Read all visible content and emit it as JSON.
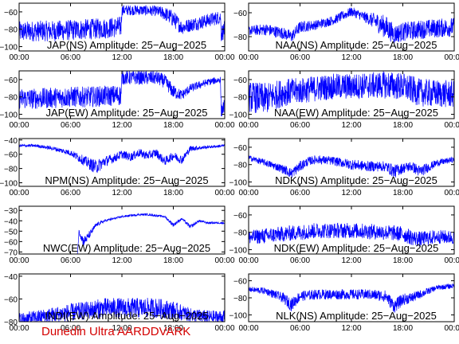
{
  "footer": "Dunedin Ultra AARDDVARK",
  "colors": {
    "trace": "#0000ff",
    "axis": "#000000",
    "footer": "#d40000"
  },
  "x_ticks": [
    "00:00",
    "06:00",
    "12:00",
    "18:00",
    "00:00"
  ],
  "chart_data": [
    {
      "type": "line",
      "title": "JAP(NS) Amplitude: 25-Aug-2025",
      "ylim": [
        -105,
        -50
      ],
      "yticks": [
        -100,
        -80,
        -60
      ],
      "xticks": [
        "00:00",
        "06:00",
        "12:00",
        "18:00",
        "00:00"
      ],
      "x": [
        0,
        2,
        4,
        6,
        8,
        10,
        11.9,
        12,
        14,
        16,
        17,
        18,
        19,
        20,
        22,
        23.5,
        23.6,
        24
      ],
      "y": [
        -83,
        -82,
        -82,
        -81,
        -80,
        -79,
        -77,
        -58,
        -58,
        -59,
        -62,
        -68,
        -78,
        -75,
        -70,
        -66,
        -85,
        -80
      ],
      "noise": [
        12,
        12,
        12,
        12,
        12,
        12,
        12,
        6,
        6,
        6,
        8,
        10,
        8,
        8,
        8,
        8,
        10,
        10
      ]
    },
    {
      "type": "line",
      "title": "NAA(NS) Amplitude: 25-Aug-2025",
      "ylim": [
        -92,
        -52
      ],
      "yticks": [
        -80,
        -60
      ],
      "xticks": [
        "00:00",
        "06:00",
        "12:00",
        "18:00",
        "00:00"
      ],
      "x": [
        0,
        2,
        4,
        5,
        6,
        8,
        10,
        12,
        13,
        14,
        15,
        16,
        17,
        18,
        20,
        22,
        24
      ],
      "y": [
        -75,
        -74,
        -77,
        -80,
        -72,
        -70,
        -66,
        -59,
        -62,
        -65,
        -68,
        -72,
        -78,
        -76,
        -74,
        -73,
        -72
      ],
      "noise": [
        4,
        5,
        5,
        5,
        5,
        4,
        4,
        4,
        4,
        5,
        8,
        10,
        8,
        8,
        8,
        8,
        8
      ]
    },
    {
      "type": "line",
      "title": "JAP(EW) Amplitude: 25-Aug-2025",
      "ylim": [
        -105,
        -50
      ],
      "yticks": [
        -100,
        -80,
        -60
      ],
      "xticks": [
        "00:00",
        "06:00",
        "12:00",
        "18:00",
        "00:00"
      ],
      "x": [
        0,
        2,
        4,
        6,
        8,
        10,
        11.9,
        12,
        14,
        16,
        17,
        18,
        19,
        20,
        22,
        23.5,
        23.6,
        24
      ],
      "y": [
        -82,
        -82,
        -81,
        -80,
        -80,
        -79,
        -78,
        -58,
        -58,
        -58,
        -62,
        -74,
        -78,
        -70,
        -63,
        -60,
        -96,
        -90
      ],
      "noise": [
        12,
        12,
        12,
        12,
        12,
        12,
        12,
        8,
        8,
        8,
        8,
        8,
        6,
        5,
        4,
        4,
        8,
        8
      ]
    },
    {
      "type": "line",
      "title": "NAA(EW) Amplitude: 25-Aug-2025",
      "ylim": [
        -105,
        -50
      ],
      "yticks": [
        -100,
        -80,
        -60
      ],
      "xticks": [
        "00:00",
        "06:00",
        "12:00",
        "18:00",
        "00:00"
      ],
      "x": [
        0,
        2,
        4,
        6,
        8,
        10,
        12,
        14,
        16,
        18,
        20,
        22,
        24
      ],
      "y": [
        -80,
        -82,
        -75,
        -73,
        -70,
        -68,
        -68,
        -67,
        -66,
        -68,
        -75,
        -76,
        -77
      ],
      "noise": [
        18,
        18,
        16,
        15,
        15,
        15,
        15,
        15,
        16,
        16,
        16,
        16,
        16
      ]
    },
    {
      "type": "line",
      "title": "NPM(NS) Amplitude: 25-Aug-2025",
      "ylim": [
        -105,
        -38
      ],
      "yticks": [
        -100,
        -80,
        -60,
        -40
      ],
      "xticks": [
        "00:00",
        "06:00",
        "12:00",
        "18:00",
        "00:00"
      ],
      "x": [
        0,
        2,
        4,
        6,
        7,
        8,
        9,
        10,
        11,
        12,
        13,
        14,
        15,
        16,
        17,
        18,
        19,
        20,
        22,
        24
      ],
      "y": [
        -48,
        -48,
        -52,
        -58,
        -65,
        -72,
        -78,
        -70,
        -66,
        -60,
        -64,
        -58,
        -62,
        -58,
        -70,
        -62,
        -68,
        -52,
        -50,
        -48
      ],
      "noise": [
        2,
        2,
        3,
        4,
        6,
        8,
        10,
        8,
        6,
        6,
        6,
        6,
        6,
        6,
        6,
        6,
        6,
        4,
        2,
        2
      ]
    },
    {
      "type": "line",
      "title": "NDK(NS) Amplitude: 25-Aug-2025",
      "ylim": [
        -105,
        -50
      ],
      "yticks": [
        -100,
        -80,
        -60
      ],
      "xticks": [
        "00:00",
        "06:00",
        "12:00",
        "18:00",
        "00:00"
      ],
      "x": [
        0,
        2,
        4,
        5,
        6,
        7,
        8,
        10,
        12,
        14,
        16,
        17,
        18,
        19,
        20,
        22,
        24
      ],
      "y": [
        -72,
        -78,
        -85,
        -90,
        -82,
        -76,
        -74,
        -76,
        -80,
        -82,
        -82,
        -88,
        -84,
        -82,
        -88,
        -78,
        -74
      ],
      "noise": [
        3,
        4,
        5,
        6,
        6,
        5,
        5,
        5,
        6,
        6,
        6,
        8,
        6,
        6,
        7,
        4,
        3
      ]
    },
    {
      "type": "line",
      "title": "NWC(EW) Amplitude: 25-Aug-2025",
      "ylim": [
        -72,
        -26
      ],
      "yticks": [
        -70,
        -60,
        -50,
        -40,
        -30
      ],
      "xticks": [
        "00:00",
        "06:00",
        "12:00",
        "18:00",
        "00:00"
      ],
      "x": [
        0,
        6.8,
        7,
        7.5,
        8,
        8.5,
        9,
        10,
        12,
        14,
        15,
        17,
        18,
        19,
        20,
        21,
        22,
        24
      ],
      "y": [
        -72,
        -72,
        -50,
        -60,
        -56,
        -50,
        -44,
        -40,
        -36,
        -34,
        -34,
        -36,
        -44,
        -38,
        -46,
        -40,
        -42,
        -42
      ],
      "noise": [
        0,
        0,
        3,
        5,
        4,
        3,
        2,
        1,
        1,
        1,
        1,
        1,
        2,
        1,
        2,
        1,
        1,
        1
      ]
    },
    {
      "type": "line",
      "title": "NDK(EW) Amplitude: 25-Aug-2025",
      "ylim": [
        -105,
        -50
      ],
      "yticks": [
        -100,
        -80,
        -60
      ],
      "xticks": [
        "00:00",
        "06:00",
        "12:00",
        "18:00",
        "00:00"
      ],
      "x": [
        0,
        2,
        4,
        6,
        8,
        10,
        12,
        14,
        16,
        18,
        19,
        20,
        22,
        24
      ],
      "y": [
        -86,
        -84,
        -82,
        -80,
        -78,
        -78,
        -78,
        -79,
        -80,
        -82,
        -86,
        -88,
        -85,
        -86
      ],
      "noise": [
        8,
        9,
        9,
        9,
        9,
        9,
        9,
        9,
        9,
        9,
        9,
        9,
        8,
        8
      ]
    },
    {
      "type": "line",
      "title": "INDI(EW) Amplitude: 25-Aug-2025",
      "ylim": [
        -80,
        -38
      ],
      "yticks": [
        -80,
        -60,
        -40
      ],
      "xticks": [
        "00:00",
        "06:00",
        "12:00",
        "18:00",
        "00:00"
      ],
      "x": [
        0,
        2,
        4,
        6,
        8,
        10,
        12,
        14,
        16,
        18,
        20,
        22,
        24
      ],
      "y": [
        -78,
        -76,
        -74,
        -72,
        -70,
        -68,
        -68,
        -68,
        -68,
        -70,
        -74,
        -76,
        -76
      ],
      "noise": [
        6,
        6,
        7,
        8,
        8,
        9,
        9,
        9,
        9,
        8,
        6,
        6,
        6
      ]
    },
    {
      "type": "line",
      "title": "NLK(NS) Amplitude: 25-Aug-2025",
      "ylim": [
        -108,
        -52
      ],
      "yticks": [
        -100,
        -80,
        -60
      ],
      "xticks": [
        "00:00",
        "06:00",
        "12:00",
        "18:00",
        "00:00"
      ],
      "x": [
        0,
        2,
        4,
        5,
        6,
        8,
        10,
        12,
        14,
        16,
        17,
        18,
        19,
        20,
        22,
        24
      ],
      "y": [
        -70,
        -72,
        -80,
        -88,
        -78,
        -76,
        -76,
        -76,
        -76,
        -78,
        -90,
        -82,
        -80,
        -76,
        -68,
        -66
      ],
      "noise": [
        3,
        4,
        6,
        8,
        6,
        6,
        6,
        6,
        6,
        7,
        8,
        7,
        6,
        5,
        3,
        3
      ]
    }
  ]
}
